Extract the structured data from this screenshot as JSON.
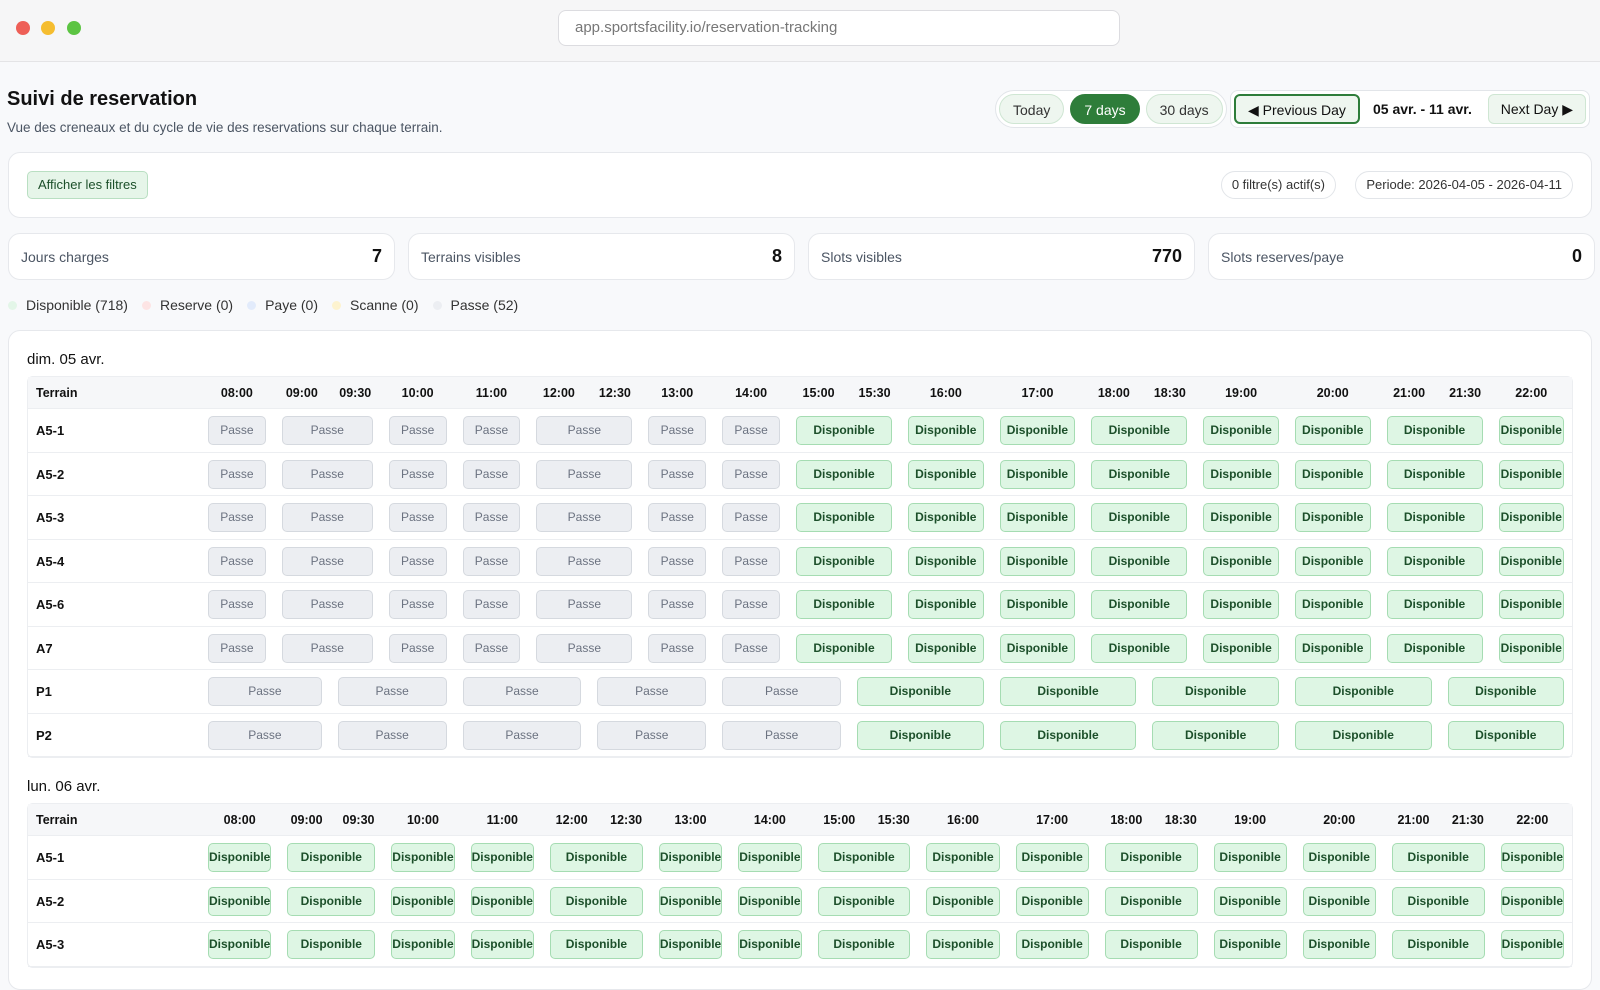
{
  "browser": {
    "url": "app.sportsfacility.io/reservation-tracking"
  },
  "header": {
    "title": "Suivi de reservation",
    "subtitle": "Vue des creneaux et du cycle de vie des reservations sur chaque terrain."
  },
  "range_buttons": [
    "Today",
    "7 days",
    "30 days"
  ],
  "range_active": 1,
  "nav": {
    "previous": "Previous Day",
    "range": "05 avr. - 11 avr.",
    "next": "Next Day"
  },
  "filters": {
    "button": "Afficher les filtres",
    "active": "0 filtre(s) actif(s)",
    "period": "Periode: 2026-04-05 - 2026-04-11"
  },
  "stats": [
    {
      "label": "Jours charges",
      "value": 7
    },
    {
      "label": "Terrains visibles",
      "value": 8
    },
    {
      "label": "Slots visibles",
      "value": 770
    },
    {
      "label": "Slots reserves/paye",
      "value": 0
    }
  ],
  "legend": [
    {
      "label": "Disponible (718)",
      "color": "#e3f6e8"
    },
    {
      "label": "Reserve (0)",
      "color": "#fde4e4"
    },
    {
      "label": "Paye (0)",
      "color": "#e2ebfb"
    },
    {
      "label": "Scanne (0)",
      "color": "#fdf3cf"
    },
    {
      "label": "Passe (52)",
      "color": "#eceef2"
    }
  ],
  "days": [
    {
      "title": "dim. 05 avr.",
      "terrain_header": "Terrain",
      "times": [
        "08:00",
        "09:00",
        "09:30",
        "10:00",
        "11:00",
        "12:00",
        "12:30",
        "13:00",
        "14:00",
        "15:00",
        "15:30",
        "16:00",
        "17:00",
        "18:00",
        "18:30",
        "19:00",
        "20:00",
        "21:00",
        "21:30",
        "22:00"
      ],
      "rows": [
        {
          "name": "A5-1",
          "slots": [
            "Passe",
            "Passe",
            "Passe",
            "Passe",
            "Passe",
            "Passe",
            "Passe",
            "Disponible",
            "Disponible",
            "Disponible",
            "Disponible",
            "Disponible",
            "Disponible",
            "Disponible",
            "Disponible"
          ]
        },
        {
          "name": "A5-2",
          "slots": [
            "Passe",
            "Passe",
            "Passe",
            "Passe",
            "Passe",
            "Passe",
            "Passe",
            "Disponible",
            "Disponible",
            "Disponible",
            "Disponible",
            "Disponible",
            "Disponible",
            "Disponible",
            "Disponible"
          ]
        },
        {
          "name": "A5-3",
          "slots": [
            "Passe",
            "Passe",
            "Passe",
            "Passe",
            "Passe",
            "Passe",
            "Passe",
            "Disponible",
            "Disponible",
            "Disponible",
            "Disponible",
            "Disponible",
            "Disponible",
            "Disponible",
            "Disponible"
          ]
        },
        {
          "name": "A5-4",
          "slots": [
            "Passe",
            "Passe",
            "Passe",
            "Passe",
            "Passe",
            "Passe",
            "Passe",
            "Disponible",
            "Disponible",
            "Disponible",
            "Disponible",
            "Disponible",
            "Disponible",
            "Disponible",
            "Disponible"
          ]
        },
        {
          "name": "A5-6",
          "slots": [
            "Passe",
            "Passe",
            "Passe",
            "Passe",
            "Passe",
            "Passe",
            "Passe",
            "Disponible",
            "Disponible",
            "Disponible",
            "Disponible",
            "Disponible",
            "Disponible",
            "Disponible",
            "Disponible"
          ]
        },
        {
          "name": "A7",
          "slots": [
            "Passe",
            "Passe",
            "Passe",
            "Passe",
            "Passe",
            "Passe",
            "Passe",
            "Disponible",
            "Disponible",
            "Disponible",
            "Disponible",
            "Disponible",
            "Disponible",
            "Disponible",
            "Disponible"
          ]
        },
        {
          "name": "P1",
          "slots": [
            "Passe",
            "Passe",
            "Passe",
            "Passe",
            "Passe",
            "Disponible",
            "Disponible",
            "Disponible",
            "Disponible",
            "Disponible"
          ]
        },
        {
          "name": "P2",
          "slots": [
            "Passe",
            "Passe",
            "Passe",
            "Passe",
            "Passe",
            "Disponible",
            "Disponible",
            "Disponible",
            "Disponible",
            "Disponible"
          ]
        }
      ]
    },
    {
      "title": "lun. 06 avr.",
      "terrain_header": "Terrain",
      "times": [
        "08:00",
        "09:00",
        "09:30",
        "10:00",
        "11:00",
        "12:00",
        "12:30",
        "13:00",
        "14:00",
        "15:00",
        "15:30",
        "16:00",
        "17:00",
        "18:00",
        "18:30",
        "19:00",
        "20:00",
        "21:00",
        "21:30",
        "22:00"
      ],
      "rows": [
        {
          "name": "A5-1",
          "slots": [
            "Disponible",
            "Disponible",
            "Disponible",
            "Disponible",
            "Disponible",
            "Disponible",
            "Disponible",
            "Disponible",
            "Disponible",
            "Disponible",
            "Disponible",
            "Disponible",
            "Disponible",
            "Disponible",
            "Disponible"
          ]
        },
        {
          "name": "A5-2",
          "slots": [
            "Disponible",
            "Disponible",
            "Disponible",
            "Disponible",
            "Disponible",
            "Disponible",
            "Disponible",
            "Disponible",
            "Disponible",
            "Disponible",
            "Disponible",
            "Disponible",
            "Disponible",
            "Disponible",
            "Disponible"
          ]
        },
        {
          "name": "A5-3",
          "slots": [
            "Disponible",
            "Disponible",
            "Disponible",
            "Disponible",
            "Disponible",
            "Disponible",
            "Disponible",
            "Disponible",
            "Disponible",
            "Disponible",
            "Disponible",
            "Disponible",
            "Disponible",
            "Disponible",
            "Disponible"
          ]
        }
      ]
    }
  ]
}
